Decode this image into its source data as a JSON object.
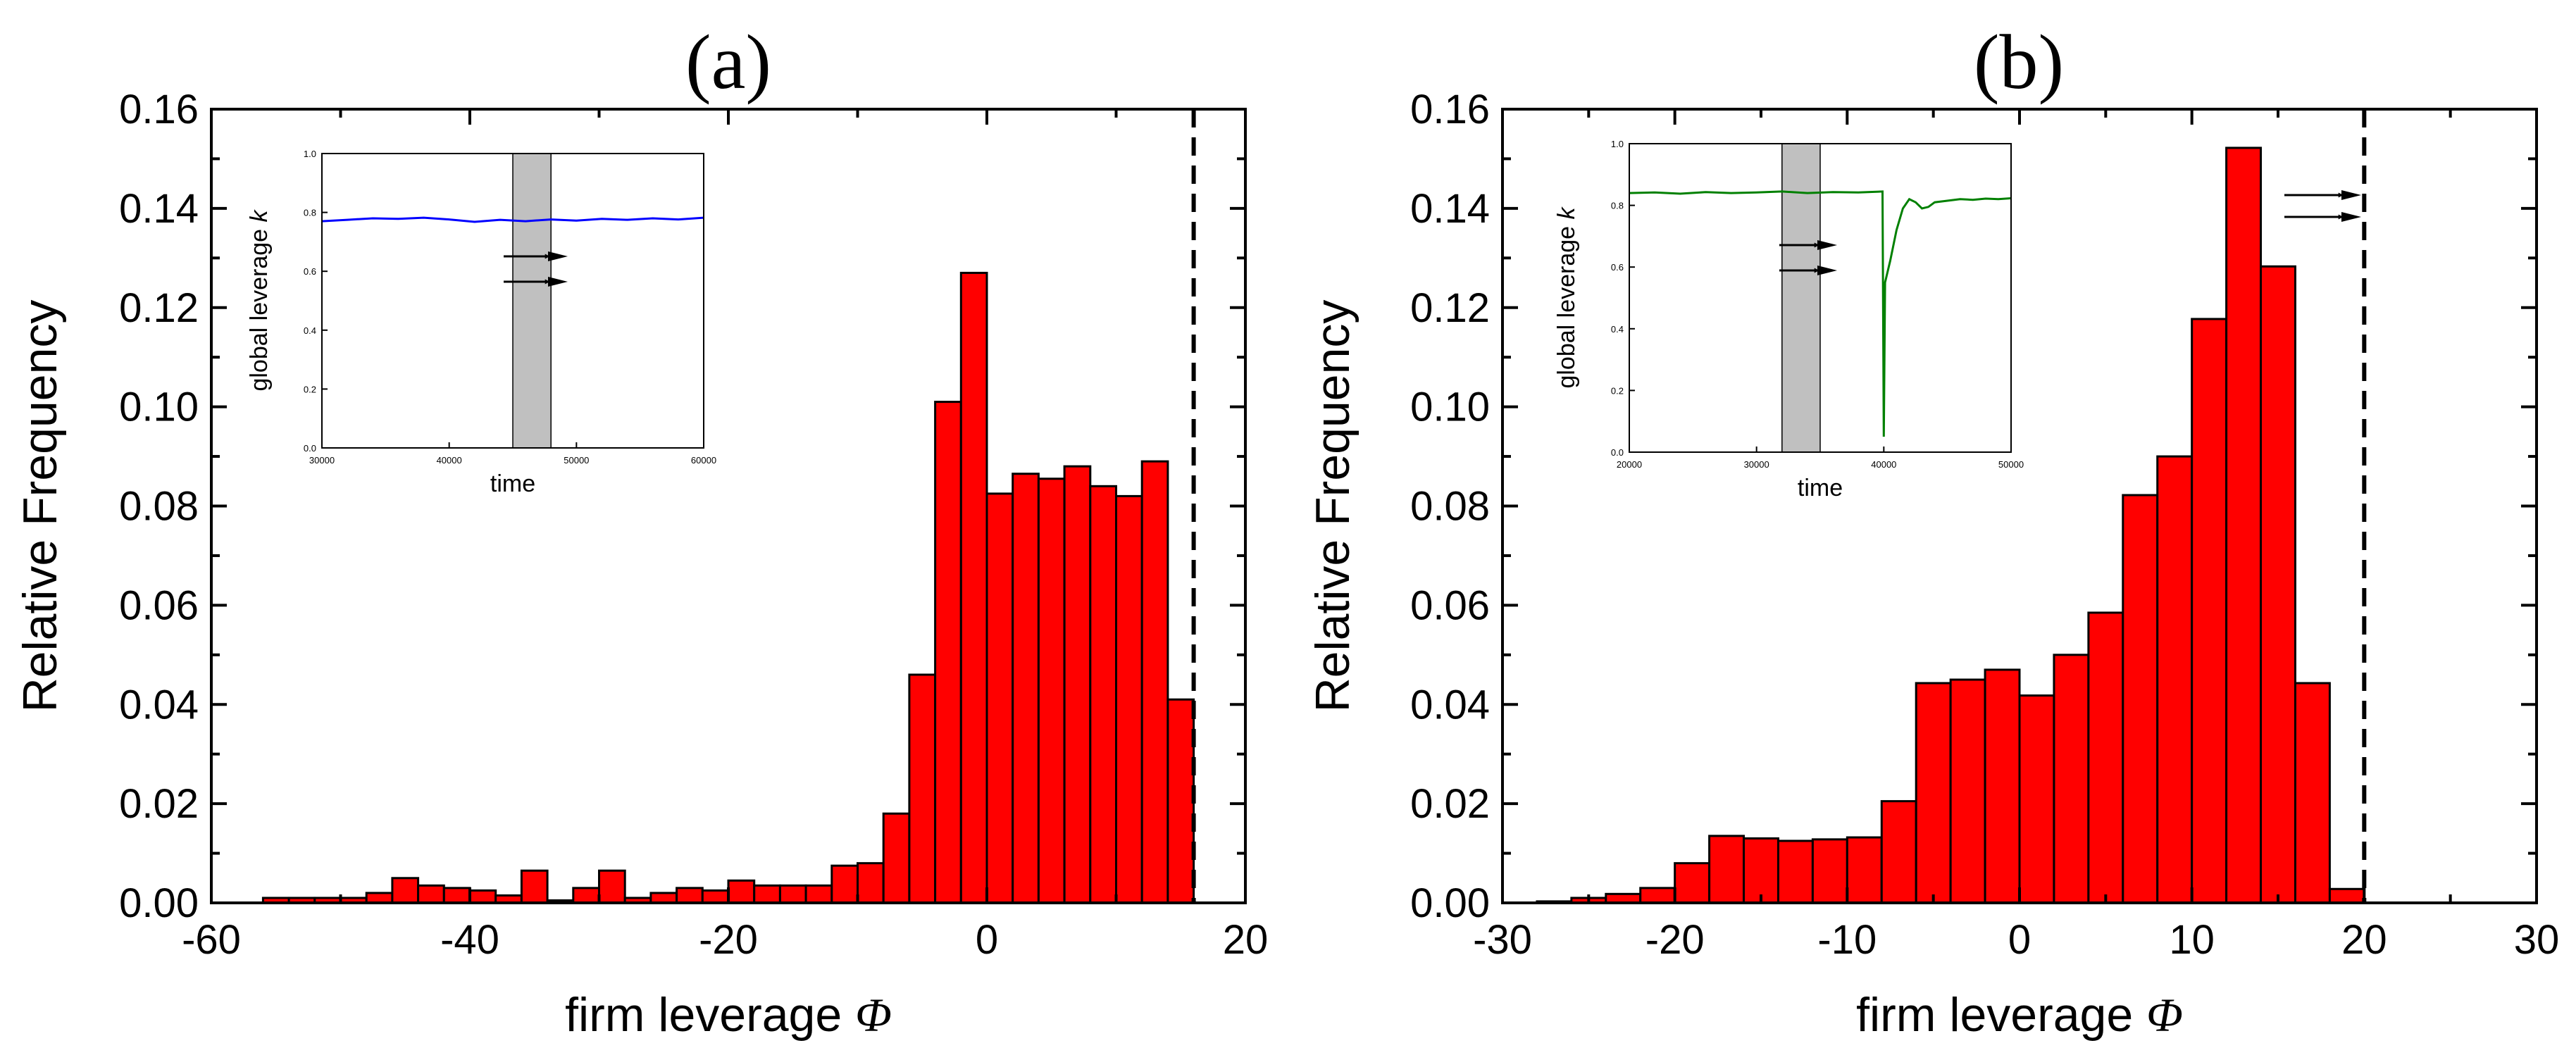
{
  "chart_data": [
    {
      "panel": "(a)",
      "type": "bar",
      "xlabel": "firm leverage",
      "xlabel_symbol": "Φ",
      "ylabel": "Relative Frequency",
      "xlim": [
        -60,
        20
      ],
      "ylim": [
        0,
        0.16
      ],
      "xticks": [
        "-60",
        "-40",
        "-20",
        "0",
        "20"
      ],
      "yticks": [
        "0.00",
        "0.02",
        "0.04",
        "0.06",
        "0.08",
        "0.10",
        "0.12",
        "0.14",
        "0.16"
      ],
      "bar_color": "#ff0000",
      "bin_width": 2,
      "bins_start": [
        -56,
        -54,
        -52,
        -50,
        -48,
        -46,
        -44,
        -42,
        -40,
        -38,
        -36,
        -34,
        -32,
        -30,
        -28,
        -26,
        -24,
        -22,
        -20,
        -18,
        -16,
        -14,
        -12,
        -10,
        -8,
        -6,
        -4,
        -2,
        0,
        2,
        4,
        6,
        8,
        10,
        12,
        14
      ],
      "values": [
        0.001,
        0.001,
        0.001,
        0.001,
        0.002,
        0.005,
        0.0035,
        0.003,
        0.0025,
        0.0015,
        0.0065,
        0.0005,
        0.003,
        0.0065,
        0.001,
        0.002,
        0.003,
        0.0025,
        0.0045,
        0.0035,
        0.0035,
        0.0035,
        0.0075,
        0.008,
        0.018,
        0.046,
        0.101,
        0.127,
        0.0825,
        0.0865,
        0.0855,
        0.088,
        0.084,
        0.082,
        0.089,
        0.041
      ],
      "threshold_x": 16,
      "inset": {
        "xlabel": "time",
        "ylabel": "global leverage",
        "ylabel_symbol": "k",
        "xlim": [
          30000,
          60000
        ],
        "ylim": [
          0,
          1
        ],
        "xticks": [
          "30000",
          "40000",
          "50000",
          "60000"
        ],
        "yticks": [
          "0.0",
          "0.2",
          "0.4",
          "0.6",
          "0.8",
          "1.0"
        ],
        "line_color": "#0000ff",
        "shaded_range": [
          45000,
          48000
        ],
        "series_t": [
          30000,
          32000,
          34000,
          36000,
          38000,
          40000,
          42000,
          44000,
          46000,
          48000,
          50000,
          52000,
          54000,
          56000,
          58000,
          60000
        ],
        "series_k": [
          0.77,
          0.775,
          0.78,
          0.778,
          0.782,
          0.776,
          0.768,
          0.775,
          0.77,
          0.776,
          0.772,
          0.778,
          0.775,
          0.78,
          0.776,
          0.782
        ]
      }
    },
    {
      "panel": "(b)",
      "type": "bar",
      "xlabel": "firm leverage",
      "xlabel_symbol": "Φ",
      "ylabel": "Relative Frequency",
      "xlim": [
        -30,
        30
      ],
      "ylim": [
        0,
        0.16
      ],
      "xticks": [
        "-30",
        "-20",
        "-10",
        "0",
        "10",
        "20",
        "30"
      ],
      "yticks": [
        "0.00",
        "0.02",
        "0.04",
        "0.06",
        "0.08",
        "0.10",
        "0.12",
        "0.14",
        "0.16"
      ],
      "bar_color": "#ff0000",
      "bin_width": 2,
      "bins_start": [
        -28,
        -26,
        -24,
        -22,
        -20,
        -18,
        -16,
        -14,
        -12,
        -10,
        -8,
        -6,
        -4,
        -2,
        0,
        2,
        4,
        6,
        8,
        10,
        12,
        14,
        16,
        18
      ],
      "values": [
        0.0003,
        0.001,
        0.0018,
        0.003,
        0.008,
        0.0135,
        0.013,
        0.0125,
        0.0128,
        0.0132,
        0.0205,
        0.0443,
        0.045,
        0.047,
        0.0418,
        0.05,
        0.0585,
        0.0822,
        0.09,
        0.1177,
        0.1522,
        0.1283,
        0.0443,
        0.0028
      ],
      "threshold_x": 20,
      "inset": {
        "xlabel": "time",
        "ylabel": "global leverage",
        "ylabel_symbol": "k",
        "xlim": [
          20000,
          50000
        ],
        "ylim": [
          0,
          1
        ],
        "xticks": [
          "20000",
          "30000",
          "40000",
          "50000"
        ],
        "yticks": [
          "0.0",
          "0.2",
          "0.4",
          "0.6",
          "0.8",
          "1.0"
        ],
        "line_color": "#008000",
        "shaded_range": [
          32000,
          35000
        ],
        "series_t": [
          20000,
          22000,
          24000,
          26000,
          28000,
          30000,
          32000,
          34000,
          36000,
          38000,
          39900,
          40000,
          40100,
          40500,
          41000,
          41500,
          42000,
          42500,
          43000,
          43500,
          44000,
          45000,
          46000,
          47000,
          48000,
          49000,
          50000
        ],
        "series_k": [
          0.84,
          0.842,
          0.838,
          0.843,
          0.84,
          0.842,
          0.845,
          0.84,
          0.843,
          0.842,
          0.845,
          0.05,
          0.55,
          0.62,
          0.72,
          0.79,
          0.82,
          0.81,
          0.79,
          0.795,
          0.81,
          0.815,
          0.82,
          0.818,
          0.822,
          0.82,
          0.823
        ]
      }
    }
  ]
}
